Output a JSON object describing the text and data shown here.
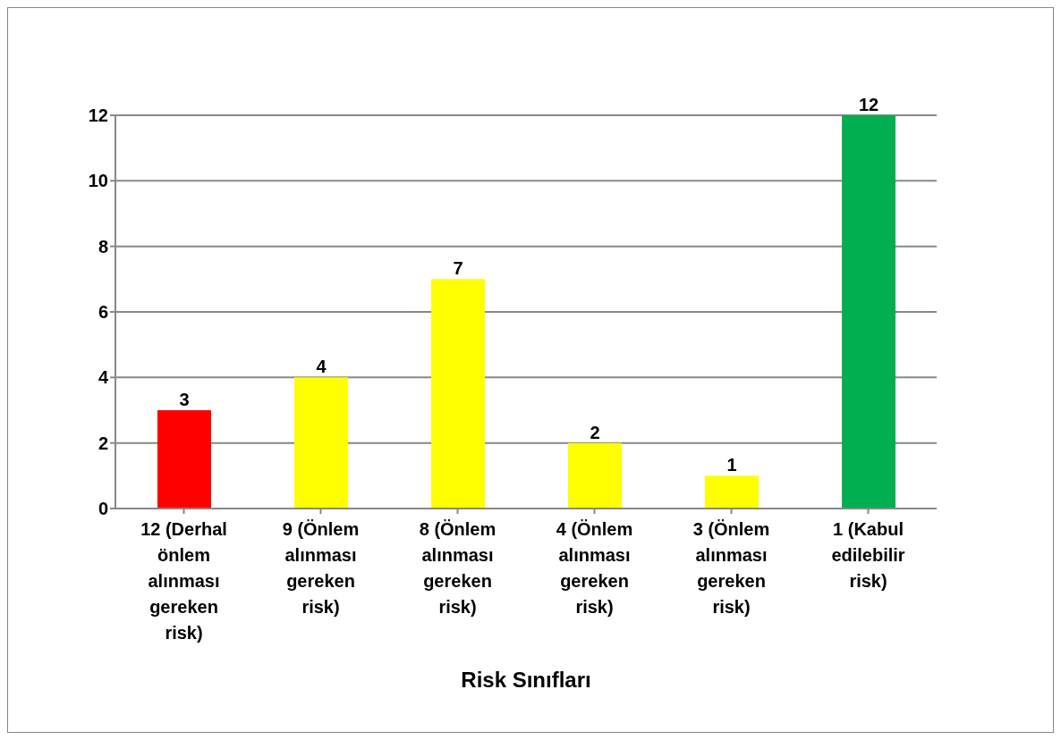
{
  "chart_data": {
    "type": "bar",
    "xlabel": "Risk Sınıfları",
    "categories": [
      "12 (Derhal önlem alınması gereken risk)",
      "9 (Önlem alınması gereken risk)",
      "8 (Önlem alınması gereken risk)",
      "4 (Önlem alınması gereken risk)",
      "3 (Önlem alınması gereken risk)",
      "1 (Kabul edilebilir risk)"
    ],
    "values": [
      3,
      4,
      7,
      2,
      1,
      12
    ],
    "colors": [
      "#ff0000",
      "#ffff00",
      "#ffff00",
      "#ffff00",
      "#ffff00",
      "#00b050"
    ],
    "ylim": [
      0,
      12
    ],
    "yticks": [
      0,
      2,
      4,
      6,
      8,
      10,
      12
    ],
    "grid": "y",
    "data_labels": true
  }
}
